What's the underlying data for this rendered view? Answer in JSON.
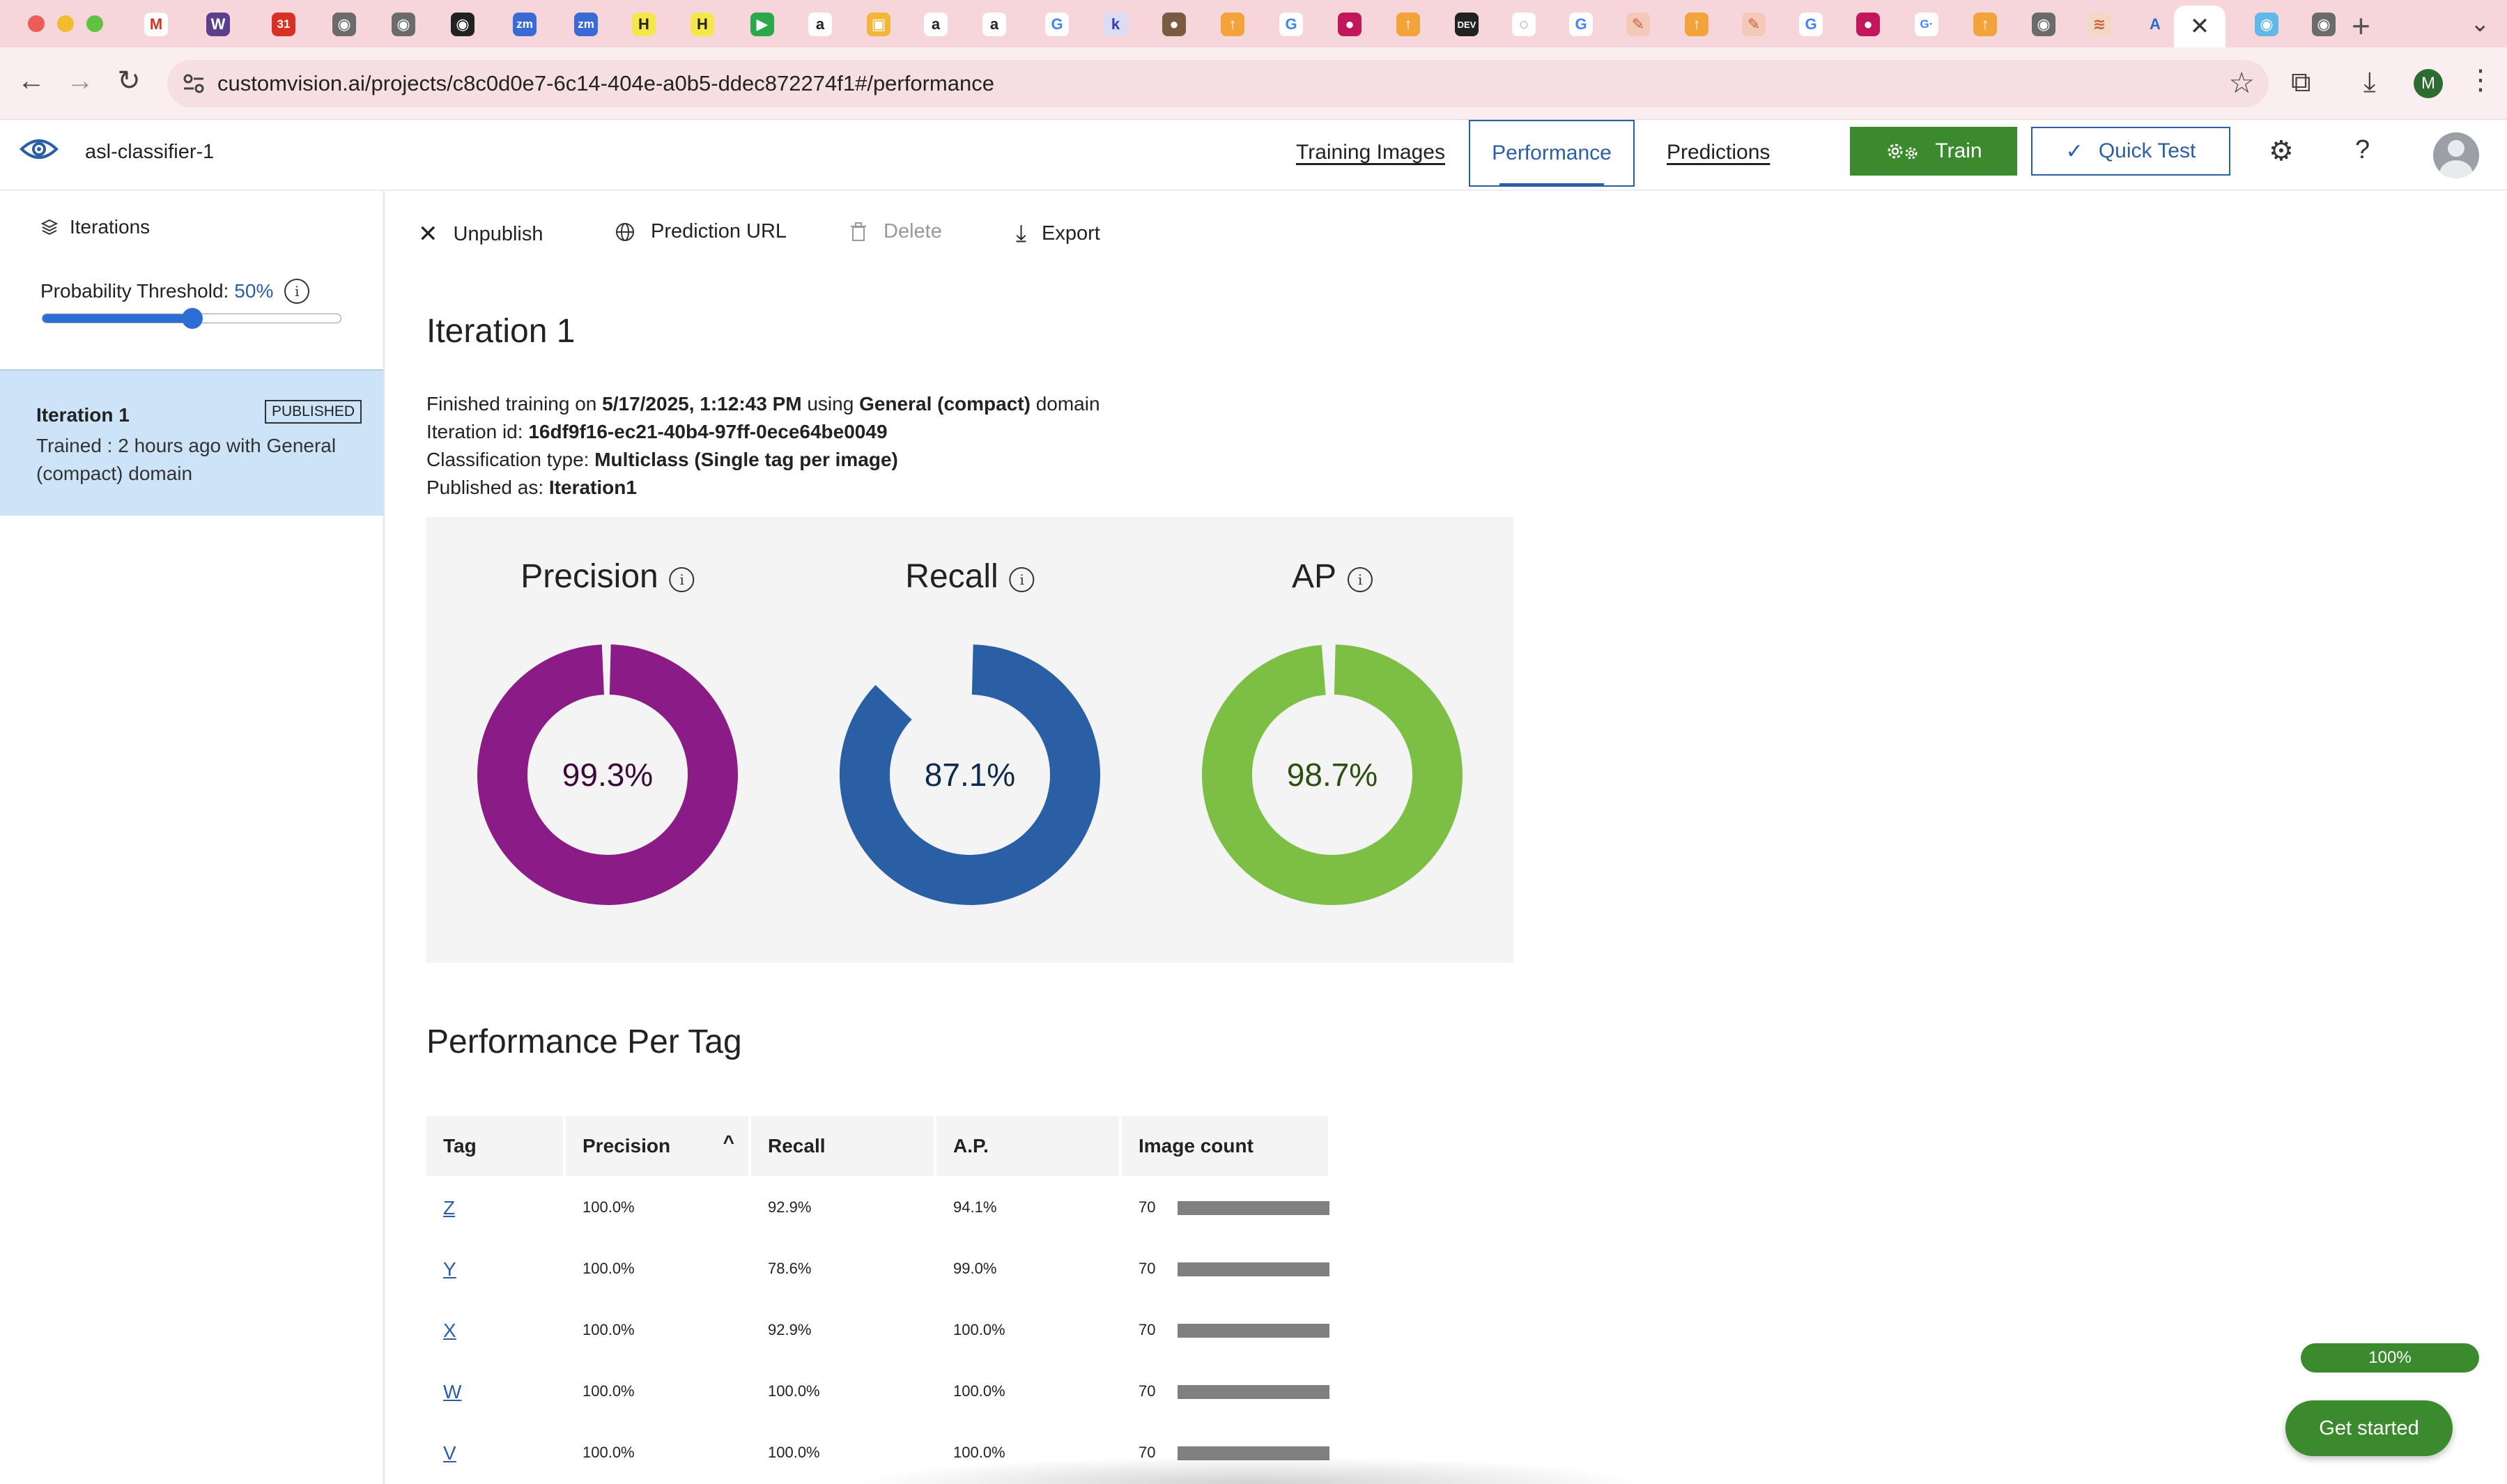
{
  "browser": {
    "url": "customvision.ai/projects/c8c0d0e7-6c14-404e-a0b5-ddec872274f1#/performance",
    "profile_initial": "M",
    "tab_favicons": [
      {
        "color": "#ffffff",
        "glyph": "M",
        "fg": "#d93025"
      },
      {
        "color": "#5b3f8c",
        "glyph": "W",
        "fg": "#ffffff"
      },
      {
        "color": "#d93025",
        "glyph": "31",
        "fg": "#ffffff"
      },
      {
        "color": "#6b6b6b",
        "glyph": "◉",
        "fg": "#ffffff"
      },
      {
        "color": "#6b6b6b",
        "glyph": "◉",
        "fg": "#ffffff"
      },
      {
        "color": "#222222",
        "glyph": "◉",
        "fg": "#ffffff"
      },
      {
        "color": "#3a6ad6",
        "glyph": "zm",
        "fg": "#ffffff"
      },
      {
        "color": "#3a6ad6",
        "glyph": "zm",
        "fg": "#ffffff"
      },
      {
        "color": "#f5e64a",
        "glyph": "H",
        "fg": "#222222"
      },
      {
        "color": "#f5e64a",
        "glyph": "H",
        "fg": "#222222"
      },
      {
        "color": "#2aa84a",
        "glyph": "▶",
        "fg": "#ffffff"
      },
      {
        "color": "#ffffff",
        "glyph": "a",
        "fg": "#222222"
      },
      {
        "color": "#f3b638",
        "glyph": "▣",
        "fg": "#ffffff"
      },
      {
        "color": "#ffffff",
        "glyph": "a",
        "fg": "#222222"
      },
      {
        "color": "#ffffff",
        "glyph": "a",
        "fg": "#222222"
      },
      {
        "color": "#ffffff",
        "glyph": "G",
        "fg": "#4285f4"
      },
      {
        "color": "#dcdcf5",
        "glyph": "k",
        "fg": "#3a3ab0"
      },
      {
        "color": "#7a5a40",
        "glyph": "●",
        "fg": "#ffffff"
      },
      {
        "color": "#f2a33a",
        "glyph": "↑",
        "fg": "#ffffff"
      },
      {
        "color": "#ffffff",
        "glyph": "G",
        "fg": "#4285f4"
      },
      {
        "color": "#c2185b",
        "glyph": "●",
        "fg": "#ffffff"
      },
      {
        "color": "#f2a33a",
        "glyph": "↑",
        "fg": "#ffffff"
      },
      {
        "color": "#222222",
        "glyph": "DEV",
        "fg": "#ffffff"
      },
      {
        "color": "#ffffff",
        "glyph": "◌",
        "fg": "#666666"
      },
      {
        "color": "#ffffff",
        "glyph": "G",
        "fg": "#4285f4"
      },
      {
        "color": "#f5c9b8",
        "glyph": "✎",
        "fg": "#d0603a"
      },
      {
        "color": "#f2a33a",
        "glyph": "↑",
        "fg": "#ffffff"
      },
      {
        "color": "#f5c9b8",
        "glyph": "✎",
        "fg": "#d0603a"
      },
      {
        "color": "#ffffff",
        "glyph": "G",
        "fg": "#4285f4"
      },
      {
        "color": "#c2185b",
        "glyph": "●",
        "fg": "#ffffff"
      },
      {
        "color": "#ffffff",
        "glyph": "G·",
        "fg": "#4285f4"
      },
      {
        "color": "#f2a33a",
        "glyph": "↑",
        "fg": "#ffffff"
      },
      {
        "color": "#6b6b6b",
        "glyph": "◉",
        "fg": "#ffffff"
      },
      {
        "color": "#f3d9c5",
        "glyph": "≋",
        "fg": "#d0603a"
      },
      {
        "color": "#f6d5db",
        "glyph": "A",
        "fg": "#2a6ad6"
      },
      {
        "color": "#62b8e8",
        "glyph": "◉",
        "fg": "#ffffff"
      },
      {
        "color": "#6b6b6b",
        "glyph": "◉",
        "fg": "#ffffff"
      }
    ]
  },
  "app": {
    "project_name": "asl-classifier-1",
    "nav": {
      "training_images": "Training Images",
      "performance": "Performance",
      "predictions": "Predictions"
    },
    "train_label": "Train",
    "quick_test_label": "Quick Test",
    "brand_color": "#2a5fa6",
    "train_color": "#3b8a2e"
  },
  "sidebar": {
    "iterations_label": "Iterations",
    "threshold_label": "Probability Threshold:",
    "threshold_value": "50%",
    "threshold_fraction": 0.5,
    "iteration": {
      "name": "Iteration 1",
      "badge": "PUBLISHED",
      "description": "Trained : 2 hours ago with General (compact) domain"
    }
  },
  "toolbar": {
    "unpublish": "Unpublish",
    "prediction_url": "Prediction URL",
    "delete": "Delete",
    "export": "Export"
  },
  "iteration": {
    "title": "Iteration 1",
    "finished_prefix": "Finished training on ",
    "finished_date": "5/17/2025, 1:12:43 PM",
    "finished_using": " using ",
    "finished_domain": "General (compact)",
    "finished_suffix": " domain",
    "id_label": "Iteration id: ",
    "id_value": "16df9f16-ec21-40b4-97ff-0ece64be0049",
    "class_label": "Classification type: ",
    "class_value": "Multiclass (Single tag per image)",
    "published_label": "Published as: ",
    "published_value": "Iteration1"
  },
  "metrics": [
    {
      "name": "Precision",
      "value": 99.3,
      "label": "99.3%",
      "color": "#8b1c87",
      "text_color": "#3b0a3a"
    },
    {
      "name": "Recall",
      "value": 87.1,
      "label": "87.1%",
      "color": "#2a5fa6",
      "text_color": "#0d2a4d"
    },
    {
      "name": "AP",
      "value": 98.7,
      "label": "98.7%",
      "color": "#7dbf45",
      "text_color": "#2d4f12"
    }
  ],
  "per_tag": {
    "title": "Performance Per Tag",
    "columns": [
      "Tag",
      "Precision",
      "Recall",
      "A.P.",
      "Image count"
    ],
    "rows": [
      {
        "tag": "Z",
        "precision": "100.0%",
        "recall": "92.9%",
        "ap": "94.1%",
        "count": "70",
        "count_fraction": 1.0
      },
      {
        "tag": "Y",
        "precision": "100.0%",
        "recall": "78.6%",
        "ap": "99.0%",
        "count": "70",
        "count_fraction": 1.0
      },
      {
        "tag": "X",
        "precision": "100.0%",
        "recall": "92.9%",
        "ap": "100.0%",
        "count": "70",
        "count_fraction": 1.0
      },
      {
        "tag": "W",
        "precision": "100.0%",
        "recall": "100.0%",
        "ap": "100.0%",
        "count": "70",
        "count_fraction": 1.0
      },
      {
        "tag": "V",
        "precision": "100.0%",
        "recall": "100.0%",
        "ap": "100.0%",
        "count": "70",
        "count_fraction": 1.0
      }
    ]
  },
  "onboarding": {
    "progress_label": "100%",
    "get_started_label": "Get started"
  }
}
